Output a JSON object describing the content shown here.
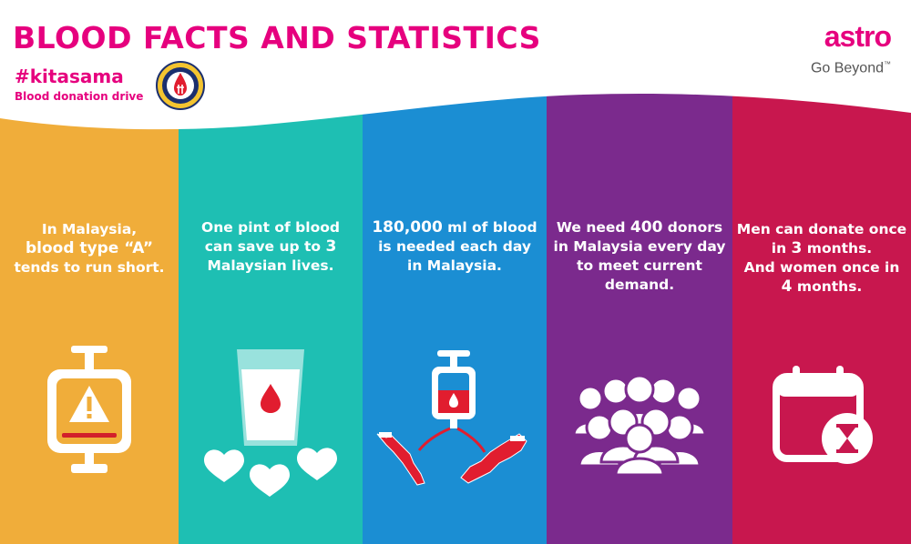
{
  "header": {
    "title": "BLOOD FACTS AND STATISTICS",
    "hashtag": "#kitasama",
    "subtitle": "Blood donation drive"
  },
  "brand": {
    "name": "astro",
    "tagline": "Go Beyond",
    "trademark": "™"
  },
  "emblem": {
    "text": "PUSAT DARAH NEGARA MALAYSIA"
  },
  "colors": {
    "title": "#e6007e",
    "panel_1": "#f0ad3a",
    "panel_2": "#1ebfb3",
    "panel_3": "#1b8ed3",
    "panel_4": "#7b2a8d",
    "panel_5": "#c8174e",
    "blood": "#e11d2f"
  },
  "panels": [
    {
      "lines": [
        {
          "pre": "In Malaysia,",
          "bold": "",
          "post": ""
        },
        {
          "pre": "",
          "bold": "blood type “A”",
          "post": ""
        },
        {
          "pre": "tends to run short.",
          "bold": "",
          "post": ""
        }
      ],
      "icon": "blood-bag-warning-icon"
    },
    {
      "lines": [
        {
          "pre": "One pint of blood",
          "bold": "",
          "post": ""
        },
        {
          "pre": "can save up to ",
          "bold": "3",
          "post": ""
        },
        {
          "pre": "Malaysian lives.",
          "bold": "",
          "post": ""
        }
      ],
      "icon": "blood-cup-hearts-icon"
    },
    {
      "lines": [
        {
          "pre": "",
          "bold": "180,000",
          "post": " ml of blood"
        },
        {
          "pre": "is needed each day",
          "bold": "",
          "post": ""
        },
        {
          "pre": "in Malaysia.",
          "bold": "",
          "post": ""
        }
      ],
      "icon": "blood-bag-malaysia-map-icon"
    },
    {
      "lines": [
        {
          "pre": "We need ",
          "bold": "400",
          "post": " donors"
        },
        {
          "pre": "in Malaysia every day",
          "bold": "",
          "post": ""
        },
        {
          "pre": "to meet current",
          "bold": "",
          "post": ""
        },
        {
          "pre": "demand.",
          "bold": "",
          "post": ""
        }
      ],
      "icon": "crowd-people-icon"
    },
    {
      "lines": [
        {
          "pre": "Men can donate once",
          "bold": "",
          "post": ""
        },
        {
          "pre": "in ",
          "bold": "3",
          "post": " months."
        },
        {
          "pre": "And women once in",
          "bold": "",
          "post": ""
        },
        {
          "pre": "",
          "bold": "4",
          "post": " months."
        }
      ],
      "icon": "calendar-hourglass-icon"
    }
  ]
}
